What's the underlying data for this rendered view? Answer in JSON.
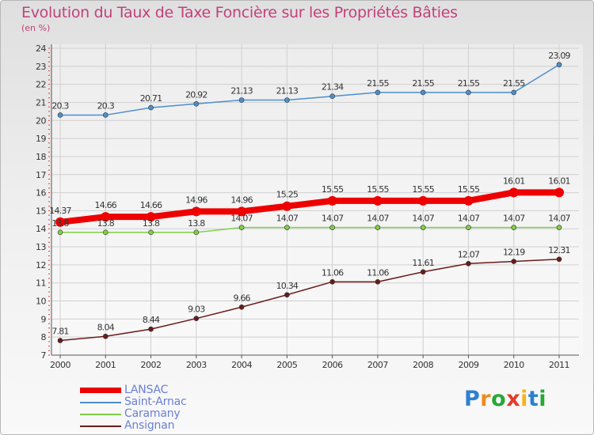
{
  "title": "Evolution du Taux de Taxe Foncière sur les Propriétés Bâties",
  "unit_label": "(en %)",
  "logo": {
    "letters": [
      "P",
      "r",
      "o",
      "x",
      "i",
      "t",
      "i"
    ],
    "colors": [
      "#2e7fd0",
      "#f08a1d",
      "#27a837",
      "#e53a2b",
      "#f2b51c",
      "#2e7fd0",
      "#27a837"
    ]
  },
  "chart_data": {
    "type": "line",
    "title": "Evolution du Taux de Taxe Foncière sur les Propriétés Bâties",
    "ylabel": "(en %)",
    "xlabel": "",
    "x": [
      "2000",
      "2001",
      "2002",
      "2003",
      "2004",
      "2005",
      "2006",
      "2007",
      "2008",
      "2009",
      "2010",
      "2011"
    ],
    "ylim": [
      7,
      24
    ],
    "yticks": [
      7,
      8,
      9,
      10,
      11,
      12,
      13,
      14,
      15,
      16,
      17,
      18,
      19,
      20,
      21,
      22,
      23,
      24
    ],
    "grid": true,
    "legend_position": "bottom-left",
    "series": [
      {
        "name": "LANSAC",
        "color": "#ee0000",
        "emphasis": true,
        "values": [
          14.37,
          14.66,
          14.66,
          14.96,
          14.96,
          15.25,
          15.55,
          15.55,
          15.55,
          15.55,
          16.01,
          16.01
        ],
        "labels": [
          "14.37",
          "14.66",
          "14.66",
          "14.96",
          "14.96",
          "15.25",
          "15.55",
          "15.55",
          "15.55",
          "15.55",
          "16.01",
          "16.01"
        ],
        "label_position": "above"
      },
      {
        "name": "Saint-Arnac",
        "color": "#4b8fce",
        "emphasis": false,
        "values": [
          20.3,
          20.3,
          20.71,
          20.92,
          21.13,
          21.13,
          21.34,
          21.55,
          21.55,
          21.55,
          21.55,
          23.09
        ],
        "labels": [
          "20.3",
          "20.3",
          "20.71",
          "20.92",
          "21.13",
          "21.13",
          "21.34",
          "21.55",
          "21.55",
          "21.55",
          "21.55",
          "23.09"
        ],
        "label_position": "above"
      },
      {
        "name": "Caramany",
        "color": "#7ed047",
        "emphasis": false,
        "values": [
          13.8,
          13.8,
          13.8,
          13.8,
          14.07,
          14.07,
          14.07,
          14.07,
          14.07,
          14.07,
          14.07,
          14.07
        ],
        "labels": [
          "13.8",
          "13.8",
          "13.8",
          "13.8",
          "14.07",
          "14.07",
          "14.07",
          "14.07",
          "14.07",
          "14.07",
          "14.07",
          "14.07"
        ],
        "label_position": "above"
      },
      {
        "name": "Ansignan",
        "color": "#6b1a1a",
        "emphasis": false,
        "values": [
          7.81,
          8.04,
          8.44,
          9.03,
          9.66,
          10.34,
          11.06,
          11.06,
          11.61,
          12.07,
          12.19,
          12.31
        ],
        "labels": [
          "7.81",
          "8.04",
          "8.44",
          "9.03",
          "9.66",
          "10.34",
          "11.06",
          "11.06",
          "11.61",
          "12.07",
          "12.19",
          "12.31"
        ],
        "label_position": "above"
      }
    ]
  }
}
